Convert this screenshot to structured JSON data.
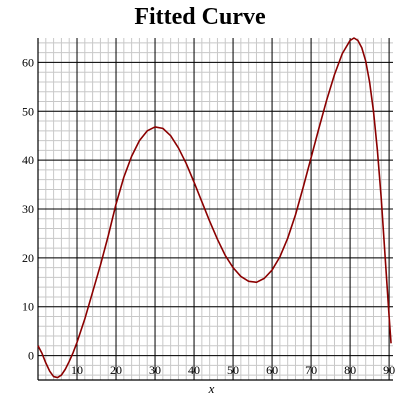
{
  "chart_data": {
    "type": "line",
    "title": "Fitted Curve",
    "xlabel": "x",
    "ylabel": "",
    "xlim": [
      0,
      91
    ],
    "ylim": [
      -5,
      65
    ],
    "xticks": [
      10,
      20,
      30,
      40,
      50,
      60,
      70,
      80,
      90
    ],
    "yticks": [
      0,
      10,
      20,
      30,
      40,
      50,
      60
    ],
    "x_minor_step": 2,
    "y_minor_step": 2,
    "grid": true,
    "legend": "none",
    "series": [
      {
        "color": "#8b0000",
        "points": [
          [
            0,
            2
          ],
          [
            1,
            0.5
          ],
          [
            2,
            -1.5
          ],
          [
            3,
            -3.2
          ],
          [
            4,
            -4.3
          ],
          [
            5,
            -4.5
          ],
          [
            6,
            -4
          ],
          [
            7,
            -2.8
          ],
          [
            8,
            -1.2
          ],
          [
            9,
            0.6
          ],
          [
            10,
            2.7
          ],
          [
            12,
            7.5
          ],
          [
            14,
            13
          ],
          [
            16,
            18.5
          ],
          [
            18,
            24.5
          ],
          [
            20,
            31
          ],
          [
            22,
            36.5
          ],
          [
            24,
            40.8
          ],
          [
            26,
            44
          ],
          [
            28,
            46
          ],
          [
            30,
            46.8
          ],
          [
            32,
            46.5
          ],
          [
            34,
            45
          ],
          [
            36,
            42.5
          ],
          [
            38,
            39.3
          ],
          [
            40,
            35.5
          ],
          [
            42,
            31.5
          ],
          [
            44,
            27.5
          ],
          [
            46,
            23.8
          ],
          [
            48,
            20.5
          ],
          [
            50,
            18
          ],
          [
            52,
            16.2
          ],
          [
            54,
            15.2
          ],
          [
            56,
            15
          ],
          [
            58,
            15.8
          ],
          [
            60,
            17.5
          ],
          [
            62,
            20.2
          ],
          [
            64,
            24
          ],
          [
            66,
            28.8
          ],
          [
            68,
            34.5
          ],
          [
            70,
            40.5
          ],
          [
            72,
            46.5
          ],
          [
            74,
            52.3
          ],
          [
            76,
            57.5
          ],
          [
            78,
            61.8
          ],
          [
            80,
            64.5
          ],
          [
            81,
            65
          ],
          [
            82,
            64.5
          ],
          [
            83,
            63
          ],
          [
            84,
            60.3
          ],
          [
            85,
            56
          ],
          [
            86,
            50
          ],
          [
            87,
            42
          ],
          [
            88,
            32
          ],
          [
            89,
            20
          ],
          [
            90,
            8
          ],
          [
            90.5,
            2.5
          ]
        ]
      }
    ]
  }
}
